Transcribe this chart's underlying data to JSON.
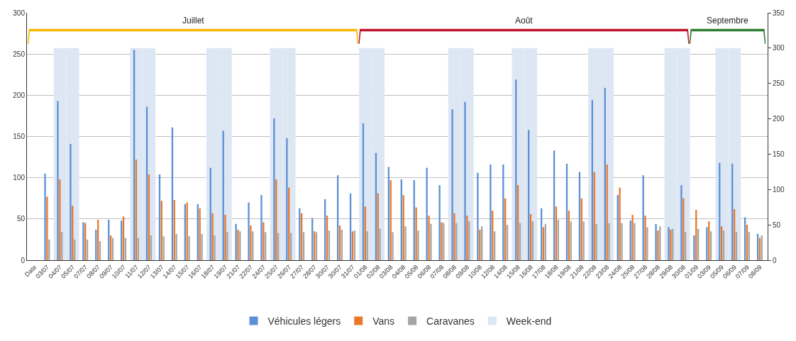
{
  "chart_data": {
    "type": "bar",
    "categories": [
      "Date",
      "03/07",
      "04/07",
      "05/07",
      "07/07",
      "08/07",
      "09/07",
      "10/07",
      "11/07",
      "12/07",
      "13/07",
      "14/07",
      "15/07",
      "16/07",
      "18/07",
      "19/07",
      "21/07",
      "22/07",
      "24/07",
      "25/07",
      "26/07",
      "27/07",
      "28/07",
      "30/07",
      "30/07",
      "31/07",
      "01/08",
      "02/08",
      "03/08",
      "04/08",
      "05/08",
      "06/08",
      "07/08",
      "08/08",
      "09/08",
      "10/08",
      "12/08",
      "14/08",
      "15/08",
      "16/08",
      "17/08",
      "18/08",
      "19/08",
      "21/08",
      "22/08",
      "23/08",
      "24/08",
      "25/08",
      "27/08",
      "28/08",
      "29/08",
      "30/08",
      "01/09",
      "03/09",
      "05/09",
      "06/09",
      "07/09",
      "08/09"
    ],
    "series": [
      {
        "name": "Véhicules légers",
        "color": "#5b8fd6",
        "values": [
          null,
          105,
          193,
          141,
          46,
          37,
          49,
          48,
          255,
          186,
          104,
          161,
          68,
          68,
          112,
          157,
          44,
          70,
          79,
          172,
          148,
          63,
          51,
          74,
          103,
          81,
          166,
          130,
          113,
          98,
          97,
          112,
          91,
          183,
          192,
          106,
          116,
          116,
          219,
          158,
          63,
          133,
          117,
          107,
          194,
          209,
          79,
          48,
          103,
          44,
          40,
          91,
          30,
          40,
          118,
          117,
          52,
          32
        ]
      },
      {
        "name": "Vans",
        "color": "#e8782a",
        "values": [
          null,
          77,
          98,
          66,
          45,
          49,
          30,
          53,
          122,
          104,
          72,
          73,
          70,
          63,
          57,
          55,
          37,
          42,
          46,
          98,
          88,
          57,
          35,
          54,
          42,
          35,
          65,
          81,
          97,
          79,
          64,
          54,
          46,
          57,
          54,
          37,
          60,
          75,
          91,
          56,
          40,
          65,
          60,
          75,
          107,
          116,
          88,
          55,
          54,
          36,
          37,
          75,
          61,
          47,
          41,
          62,
          43,
          27
        ]
      },
      {
        "name": "Caravanes",
        "color": "#a5a5a5",
        "values": [
          null,
          25,
          34,
          25,
          25,
          23,
          27,
          27,
          27,
          30,
          29,
          32,
          29,
          32,
          30,
          34,
          35,
          35,
          34,
          33,
          33,
          34,
          34,
          36,
          37,
          36,
          35,
          38,
          34,
          41,
          36,
          44,
          45,
          45,
          47,
          41,
          35,
          43,
          45,
          47,
          44,
          49,
          47,
          47,
          44,
          45,
          45,
          45,
          40,
          41,
          38,
          34,
          38,
          35,
          36,
          34,
          34,
          30
        ]
      },
      {
        "name": "Week-end",
        "color": "#dde7f4",
        "axis": "y2",
        "values": [
          null,
          null,
          300,
          300,
          null,
          null,
          null,
          null,
          300,
          300,
          null,
          null,
          null,
          null,
          300,
          300,
          null,
          null,
          null,
          300,
          300,
          null,
          null,
          null,
          null,
          null,
          300,
          300,
          null,
          null,
          null,
          null,
          null,
          300,
          300,
          null,
          null,
          null,
          300,
          300,
          null,
          null,
          null,
          null,
          300,
          300,
          null,
          null,
          null,
          null,
          300,
          300,
          null,
          null,
          300,
          300,
          null,
          null
        ]
      }
    ],
    "ylim": [
      0,
      300
    ],
    "yticks": [
      0,
      50,
      100,
      150,
      200,
      250,
      300
    ],
    "y2lim": [
      0,
      350
    ],
    "y2ticks": [
      0,
      50,
      100,
      150,
      200,
      250,
      300,
      350
    ],
    "grid": "y",
    "legend": "bottom",
    "annotations": [
      "Juillet",
      "Août",
      "Septembre"
    ]
  }
}
